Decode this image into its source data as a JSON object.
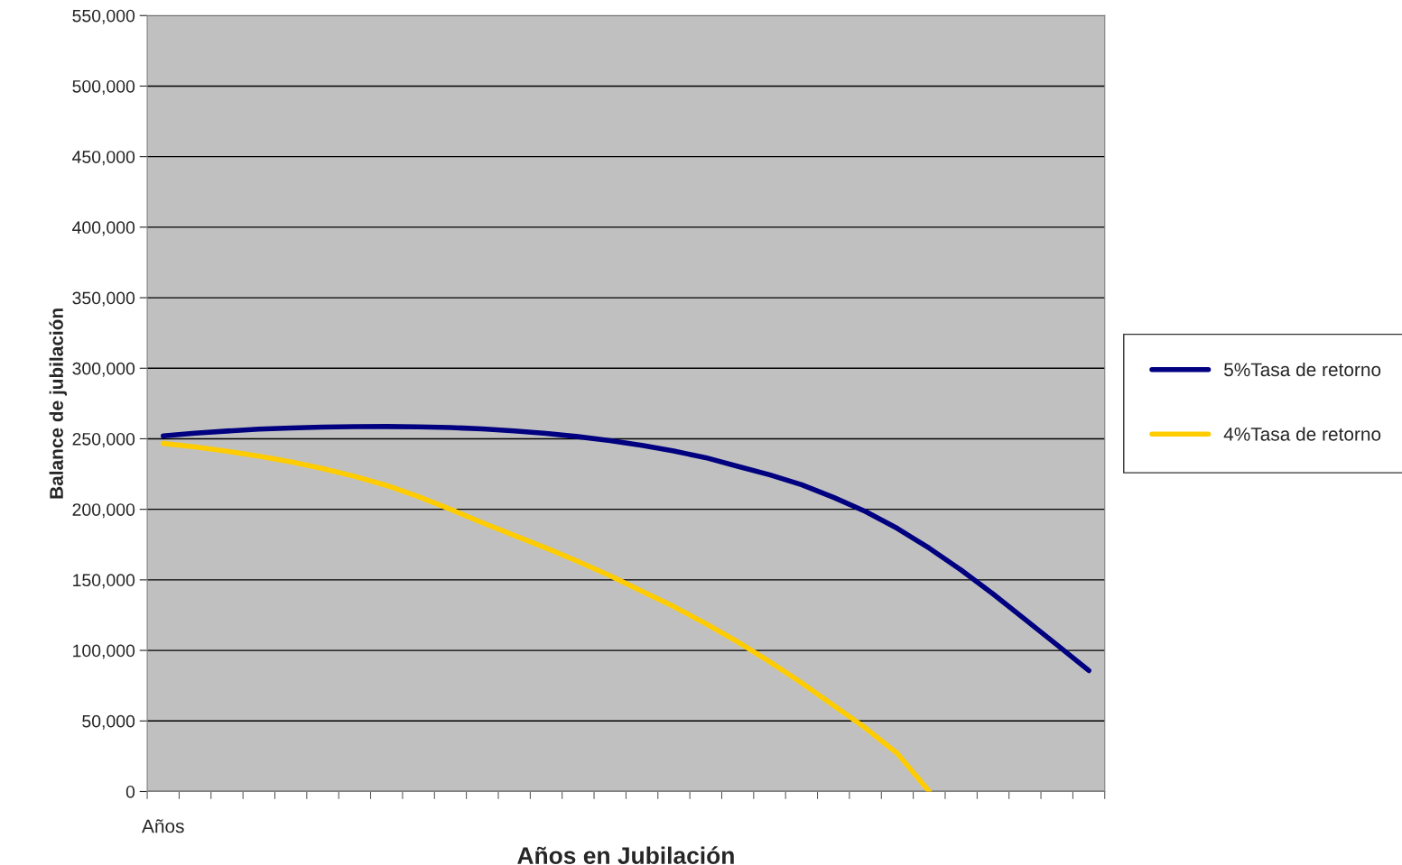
{
  "chart_data": {
    "type": "line",
    "xlabel": "Años en Jubilación",
    "ylabel": "Balance de jubilación",
    "categories": [
      "Años",
      null,
      null,
      null,
      null,
      null,
      null,
      null,
      null,
      null,
      null,
      null,
      null,
      null,
      null,
      null,
      null,
      null,
      null,
      null,
      null,
      null,
      null,
      null,
      null,
      null,
      null,
      null,
      null,
      null
    ],
    "series": [
      {
        "name": "5%Tasa de retorno",
        "color": "#000080",
        "values": [
          252000,
          254000,
          255500,
          256800,
          257700,
          258300,
          258600,
          258700,
          258500,
          258000,
          257000,
          255600,
          253800,
          251500,
          248700,
          245300,
          241300,
          236600,
          230500,
          224500,
          217500,
          208500,
          198500,
          186500,
          172500,
          157000,
          140000,
          122000,
          104000,
          85700
        ]
      },
      {
        "name": "4%Tasa de retorno",
        "color": "#ffcc00",
        "values": [
          246700,
          244200,
          241200,
          237700,
          233700,
          228900,
          223400,
          216900,
          209000,
          200000,
          190500,
          181500,
          172500,
          163000,
          153000,
          142000,
          131000,
          119000,
          106000,
          92000,
          77000,
          61000,
          45000,
          27000,
          0,
          null,
          null,
          null,
          null,
          null
        ]
      }
    ],
    "ylim": [
      0,
      550000
    ],
    "yticks": [
      {
        "value": 0,
        "label": "0"
      },
      {
        "value": 50000,
        "label": "50,000"
      },
      {
        "value": 100000,
        "label": "100,000"
      },
      {
        "value": 150000,
        "label": "150,000"
      },
      {
        "value": 200000,
        "label": "200,000"
      },
      {
        "value": 250000,
        "label": "250,000"
      },
      {
        "value": 300000,
        "label": "300,000"
      },
      {
        "value": 350000,
        "label": "350,000"
      },
      {
        "value": 400000,
        "label": "400,000"
      },
      {
        "value": 450000,
        "label": "450,000"
      },
      {
        "value": 500000,
        "label": "500,000"
      },
      {
        "value": 550000,
        "label": "550,000"
      }
    ],
    "grid": "y",
    "legend": "right",
    "marker": "none",
    "line_style": "solid"
  }
}
